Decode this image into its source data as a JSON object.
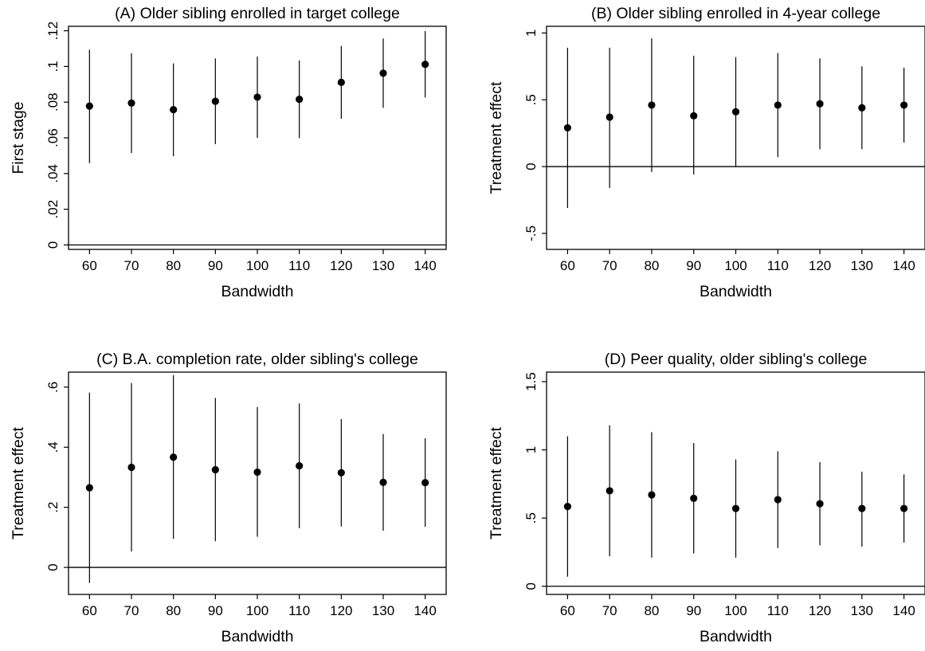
{
  "chart_data": [
    {
      "type": "scatter",
      "title": "(A) Older sibling enrolled in target college",
      "xlabel": "Bandwidth",
      "ylabel": "First stage",
      "x": [
        60,
        70,
        80,
        90,
        100,
        110,
        120,
        130,
        140
      ],
      "x_ticks": [
        "60",
        "70",
        "80",
        "90",
        "100",
        "110",
        "120",
        "130",
        "140"
      ],
      "y_ticks": [
        0,
        0.02,
        0.04,
        0.06,
        0.08,
        0.1,
        0.12
      ],
      "y_tick_labels": [
        "0",
        ".02",
        ".04",
        ".06",
        ".08",
        ".1",
        ".12"
      ],
      "ylim": [
        -0.0025,
        0.1225
      ],
      "zero_line": 0,
      "point": [
        0.0778,
        0.0795,
        0.0758,
        0.0805,
        0.0828,
        0.0816,
        0.0911,
        0.0962,
        0.1012
      ],
      "ci_low": [
        0.0458,
        0.0515,
        0.0497,
        0.0565,
        0.06,
        0.0598,
        0.0707,
        0.0768,
        0.0826
      ],
      "ci_high": [
        0.1094,
        0.1074,
        0.1017,
        0.1045,
        0.1056,
        0.1034,
        0.1115,
        0.1157,
        0.1198
      ]
    },
    {
      "type": "scatter",
      "title": "(B) Older sibling enrolled in 4-year college",
      "xlabel": "Bandwidth",
      "ylabel": "Treatment effect",
      "x": [
        60,
        70,
        80,
        90,
        100,
        110,
        120,
        130,
        140
      ],
      "x_ticks": [
        "60",
        "70",
        "80",
        "90",
        "100",
        "110",
        "120",
        "130",
        "140"
      ],
      "y_ticks": [
        -0.5,
        0,
        0.5,
        1
      ],
      "y_tick_labels": [
        "-.5",
        "0",
        ".5",
        "1"
      ],
      "ylim": [
        -0.62,
        1.05
      ],
      "zero_line": 0,
      "point": [
        0.29,
        0.37,
        0.46,
        0.38,
        0.41,
        0.46,
        0.47,
        0.44,
        0.46
      ],
      "ci_low": [
        -0.31,
        -0.16,
        -0.04,
        -0.06,
        0.0,
        0.07,
        0.13,
        0.13,
        0.18
      ],
      "ci_high": [
        0.89,
        0.89,
        0.96,
        0.83,
        0.82,
        0.85,
        0.81,
        0.75,
        0.74
      ]
    },
    {
      "type": "scatter",
      "title": "(C) B.A. completion rate, older sibling's college",
      "xlabel": "Bandwidth",
      "ylabel": "Treatment effect",
      "x": [
        60,
        70,
        80,
        90,
        100,
        110,
        120,
        130,
        140
      ],
      "x_ticks": [
        "60",
        "70",
        "80",
        "90",
        "100",
        "110",
        "120",
        "130",
        "140"
      ],
      "y_ticks": [
        0,
        0.2,
        0.4,
        0.6
      ],
      "y_tick_labels": [
        "0",
        ".2",
        ".4",
        ".6"
      ],
      "ylim": [
        -0.09,
        0.65
      ],
      "zero_line": 0,
      "point": [
        0.265,
        0.333,
        0.367,
        0.325,
        0.317,
        0.338,
        0.315,
        0.283,
        0.282
      ],
      "ci_low": [
        -0.052,
        0.053,
        0.095,
        0.087,
        0.102,
        0.13,
        0.136,
        0.122,
        0.135
      ],
      "ci_high": [
        0.582,
        0.614,
        0.64,
        0.564,
        0.534,
        0.546,
        0.494,
        0.444,
        0.43
      ]
    },
    {
      "type": "scatter",
      "title": "(D) Peer quality, older sibling's college",
      "xlabel": "Bandwidth",
      "ylabel": "Treatment effect",
      "x": [
        60,
        70,
        80,
        90,
        100,
        110,
        120,
        130,
        140
      ],
      "x_ticks": [
        "60",
        "70",
        "80",
        "90",
        "100",
        "110",
        "120",
        "130",
        "140"
      ],
      "y_ticks": [
        0,
        0.5,
        1,
        1.5
      ],
      "y_tick_labels": [
        "0",
        ".5",
        "1",
        "1.5"
      ],
      "ylim": [
        -0.06,
        1.57
      ],
      "zero_line": 0,
      "point": [
        0.585,
        0.7,
        0.67,
        0.645,
        0.57,
        0.635,
        0.605,
        0.57,
        0.57
      ],
      "ci_low": [
        0.07,
        0.22,
        0.21,
        0.24,
        0.21,
        0.28,
        0.3,
        0.29,
        0.32
      ],
      "ci_high": [
        1.1,
        1.18,
        1.13,
        1.05,
        0.93,
        0.99,
        0.91,
        0.84,
        0.82
      ]
    }
  ]
}
